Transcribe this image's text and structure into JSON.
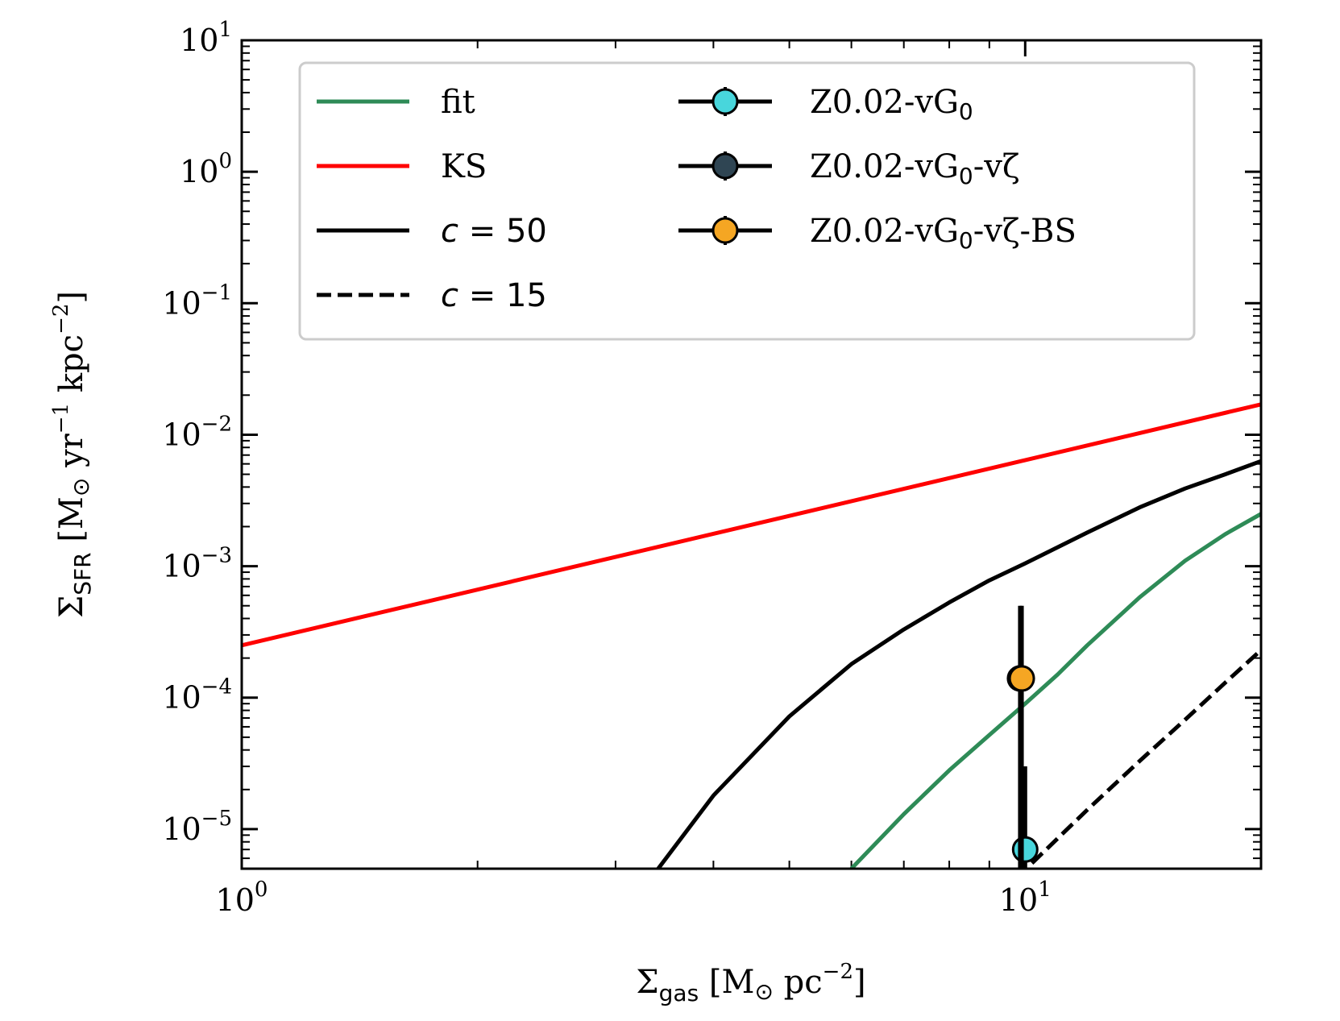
{
  "chart_data": {
    "type": "line",
    "xscale": "log",
    "yscale": "log",
    "xlim": [
      1,
      20
    ],
    "ylim": [
      5e-06,
      10
    ],
    "xlabel": {
      "sym": "Σ",
      "sub": "gas",
      "unit": " [M",
      "odot": "⊙",
      "unit2": " pc",
      "sup": "−2",
      "close": "]"
    },
    "ylabel": {
      "sym": "Σ",
      "sub": "SFR",
      "unit": " [M",
      "odot": "⊙",
      "unit2": " yr",
      "sup1": "−1",
      "unit3": " kpc",
      "sup2": "−2",
      "close": "]"
    },
    "x_ticks": [
      {
        "value": 1,
        "base": "10",
        "exp": "0"
      },
      {
        "value": 10,
        "base": "10",
        "exp": "1"
      }
    ],
    "y_ticks": [
      {
        "value": 10,
        "base": "10",
        "exp": "1"
      },
      {
        "value": 1,
        "base": "10",
        "exp": "0"
      },
      {
        "value": 0.1,
        "base": "10",
        "exp": "−1"
      },
      {
        "value": 0.01,
        "base": "10",
        "exp": "−2"
      },
      {
        "value": 0.001,
        "base": "10",
        "exp": "−3"
      },
      {
        "value": 0.0001,
        "base": "10",
        "exp": "−4"
      },
      {
        "value": 1e-05,
        "base": "10",
        "exp": "−5"
      }
    ],
    "series": [
      {
        "name": "fit",
        "color": "#2e8b57",
        "dash": "solid",
        "x": [
          6.0,
          7.0,
          8.0,
          9.0,
          10.0,
          11.0,
          12.0,
          14.0,
          16.0,
          18.0,
          20.0
        ],
        "y": [
          5e-06,
          1.3e-05,
          2.8e-05,
          5.2e-05,
          9e-05,
          0.00015,
          0.00025,
          0.00058,
          0.0011,
          0.00175,
          0.0025
        ]
      },
      {
        "name": "KS",
        "color": "#ff0000",
        "dash": "solid",
        "x": [
          1,
          20
        ],
        "y": [
          0.00025,
          0.017
        ]
      },
      {
        "name": "c = 50",
        "color": "#000000",
        "dash": "solid",
        "x": [
          3.4,
          4.0,
          5.0,
          6.0,
          7.0,
          8.0,
          9.0,
          10.0,
          12.0,
          14.0,
          16.0,
          18.0,
          20.0
        ],
        "y": [
          5e-06,
          1.8e-05,
          7.2e-05,
          0.00018,
          0.00033,
          0.00053,
          0.00078,
          0.00105,
          0.0018,
          0.0028,
          0.0039,
          0.005,
          0.0063
        ]
      },
      {
        "name": "c = 15",
        "color": "#000000",
        "dash": "dashed",
        "x": [
          10.2,
          12.0,
          14.0,
          16.0,
          18.0,
          20.0
        ],
        "y": [
          5.5e-06,
          1.4e-05,
          3.3e-05,
          6.8e-05,
          0.00013,
          0.00023
        ]
      }
    ],
    "points": [
      {
        "name": "Z0.02-vG₀",
        "color": "#48d6dc",
        "x": 10.0,
        "y": 7e-06,
        "xerr": [
          0.15,
          0.05
        ],
        "yerr_low": 3e-06,
        "yerr_high": 3e-05
      },
      {
        "name": "Z0.02-vG₀-vζ",
        "color": "#2f4553",
        "x": 9.85,
        "y": 0.00014,
        "xerr": [
          0.25,
          0.3
        ],
        "yerr_low": 3e-06,
        "yerr_high": 0.0005
      },
      {
        "name": "Z0.02-vG₀-vζ-BS",
        "color": "#f5a623",
        "x": 9.9,
        "y": 0.00014,
        "xerr": [
          0.25,
          0.3
        ],
        "yerr_low": 3e-06,
        "yerr_high": 0.0005
      }
    ],
    "legend": {
      "placement": "top-left",
      "line_entries": [
        {
          "label": "fit",
          "color": "#2e8b57",
          "dash": "solid"
        },
        {
          "label": "KS",
          "color": "#ff0000",
          "dash": "solid"
        },
        {
          "label_c": "c",
          "label_eq": " = 50",
          "color": "#000000",
          "dash": "solid"
        },
        {
          "label_c": "c",
          "label_eq": " = 15",
          "color": "#000000",
          "dash": "dashed"
        }
      ],
      "point_entries": [
        {
          "label_a": "Z0.02-vG",
          "label_sub": "0",
          "label_b": "",
          "color": "#48d6dc"
        },
        {
          "label_a": "Z0.02-vG",
          "label_sub": "0",
          "label_b": "-vζ",
          "color": "#2f4553"
        },
        {
          "label_a": "Z0.02-vG",
          "label_sub": "0",
          "label_b": "-vζ-BS",
          "color": "#f5a623"
        }
      ]
    }
  }
}
